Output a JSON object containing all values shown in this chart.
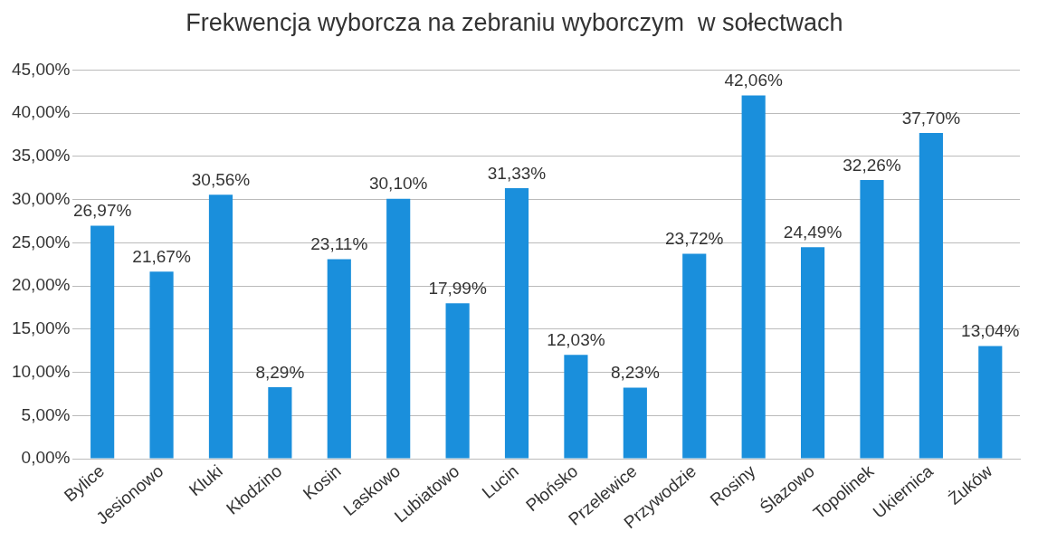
{
  "chart_data": {
    "type": "bar",
    "title": "Frekwencja wyborcza na zebraniu wyborczym  w sołectwach",
    "categories": [
      "Bylice",
      "Jesionowo",
      "Kluki",
      "Kłodzino",
      "Kosin",
      "Laskowo",
      "Lubiatowo",
      "Lucin",
      "Płońsko",
      "Przelewice",
      "Przywodzie",
      "Rosiny",
      "Ślazowo",
      "Topolinek",
      "Ukiernica",
      "Żuków"
    ],
    "values": [
      26.97,
      21.67,
      30.56,
      8.29,
      23.11,
      30.1,
      17.99,
      31.33,
      12.03,
      8.23,
      23.72,
      42.06,
      24.49,
      32.26,
      37.7,
      13.04
    ],
    "value_labels": [
      "26,97%",
      "21,67%",
      "30,56%",
      "8,29%",
      "23,11%",
      "30,10%",
      "17,99%",
      "31,33%",
      "12,03%",
      "8,23%",
      "23,72%",
      "42,06%",
      "24,49%",
      "32,26%",
      "37,70%",
      "13,04%"
    ],
    "color": "#1a8fdc",
    "ylim": [
      0,
      45
    ],
    "yticks": [
      {
        "value": 0,
        "label": "0,00%"
      },
      {
        "value": 5,
        "label": "5,00%"
      },
      {
        "value": 10,
        "label": "10,00%"
      },
      {
        "value": 15,
        "label": "15,00%"
      },
      {
        "value": 20,
        "label": "20,00%"
      },
      {
        "value": 25,
        "label": "25,00%"
      },
      {
        "value": 30,
        "label": "30,00%"
      },
      {
        "value": 35,
        "label": "35,00%"
      },
      {
        "value": 40,
        "label": "40,00%"
      },
      {
        "value": 45,
        "label": "45,00%"
      }
    ],
    "grid": "y"
  }
}
